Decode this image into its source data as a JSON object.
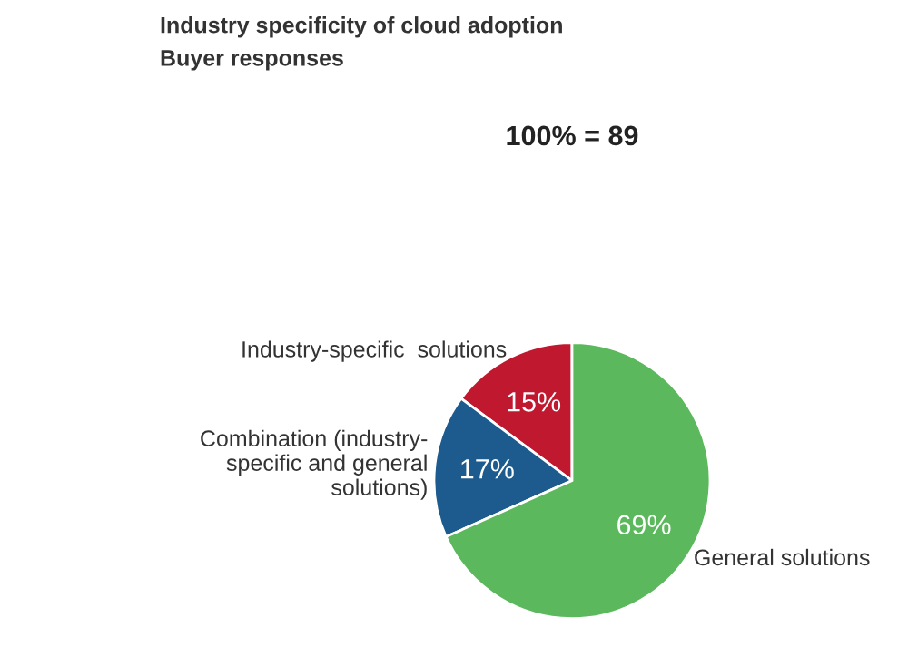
{
  "chart_data": {
    "type": "pie",
    "title": "Industry specificity of cloud adoption",
    "subtitle": "Buyer responses",
    "annotations": [
      "100% = 89"
    ],
    "categories": [
      "Industry-specific  solutions",
      "Combination (industry-\nspecific and general\nsolutions)",
      "General solutions"
    ],
    "values": [
      15,
      17,
      69
    ],
    "colors": [
      "#c0182f",
      "#1d5b8e",
      "#5cb85c"
    ],
    "value_labels": [
      "15%",
      "17%",
      "69%"
    ]
  }
}
